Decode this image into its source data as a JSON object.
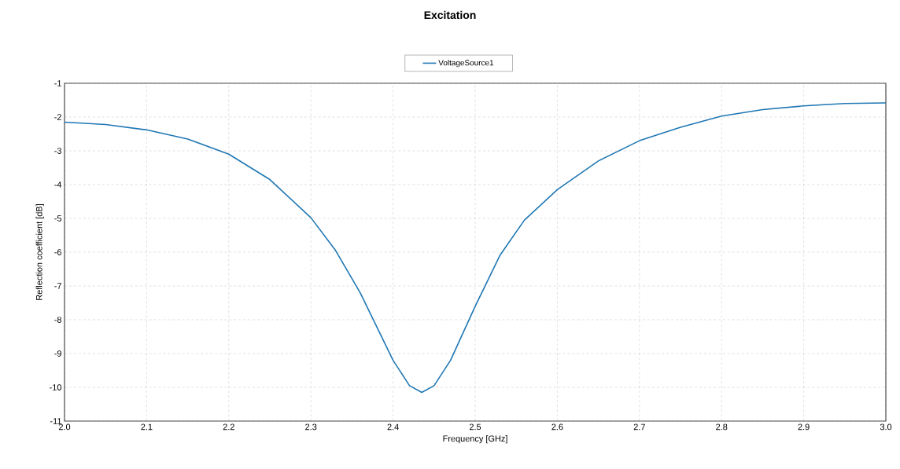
{
  "chart_data": {
    "type": "line",
    "title": "Excitation",
    "xlabel": "Frequency [GHz]",
    "ylabel": "Reflection coefficient [dB]",
    "xlim": [
      2.0,
      3.0
    ],
    "ylim": [
      -11,
      -1
    ],
    "xticks": [
      {
        "value": 2.0,
        "label": "2.0"
      },
      2.1,
      2.2,
      2.3,
      2.4,
      2.5,
      2.6,
      2.7,
      2.8,
      2.9,
      {
        "value": 3.0,
        "label": "3.0"
      }
    ],
    "yticks": [
      -11,
      -10,
      -9,
      -8,
      -7,
      -6,
      -5,
      -4,
      -3,
      -2,
      -1
    ],
    "grid": true,
    "legend": "top",
    "line_style": "solid",
    "marker": "none",
    "series": [
      {
        "name": "VoltageSource1",
        "color": "#1f77b4",
        "x": [
          2.0,
          2.05,
          2.1,
          2.15,
          2.2,
          2.25,
          2.3,
          2.33,
          2.36,
          2.38,
          2.4,
          2.42,
          2.435,
          2.45,
          2.47,
          2.5,
          2.53,
          2.56,
          2.6,
          2.65,
          2.7,
          2.75,
          2.8,
          2.85,
          2.9,
          2.95,
          3.0
        ],
        "values": [
          -2.15,
          -2.22,
          -2.38,
          -2.65,
          -3.1,
          -3.85,
          -4.98,
          -5.95,
          -7.2,
          -8.2,
          -9.2,
          -9.95,
          -10.15,
          -9.95,
          -9.2,
          -7.6,
          -6.1,
          -5.05,
          -4.15,
          -3.3,
          -2.7,
          -2.3,
          -1.97,
          -1.78,
          -1.67,
          -1.6,
          -1.58
        ]
      }
    ]
  }
}
